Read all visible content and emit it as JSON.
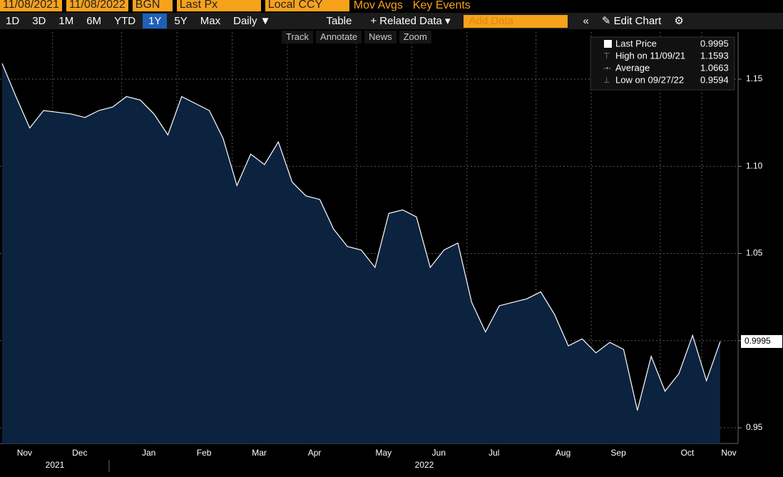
{
  "toolbar": {
    "start_date": "11/08/2021",
    "end_date": "11/08/2022",
    "source": "BGN",
    "field": "Last Px",
    "currency": "Local CCY",
    "mov_avgs": "Mov Avgs",
    "key_events": "Key Events"
  },
  "periods": [
    "1D",
    "3D",
    "1M",
    "6M",
    "YTD",
    "1Y",
    "5Y",
    "Max"
  ],
  "controls": {
    "frequency": "Daily ▼",
    "table": "Table",
    "related": "+ Related Data ▾",
    "add_data": "Add Data",
    "edit": "Edit Chart"
  },
  "tools": [
    "Track",
    "Annotate",
    "News",
    "Zoom"
  ],
  "chart_data": {
    "type": "area",
    "categories": [
      null,
      "Nov",
      null,
      null,
      null,
      "Dec",
      null,
      null,
      null,
      null,
      "Jan",
      null,
      null,
      null,
      "Feb",
      null,
      null,
      null,
      "Mar",
      null,
      null,
      null,
      "Apr",
      null,
      null,
      null,
      null,
      "May",
      null,
      null,
      null,
      "Jun",
      null,
      null,
      null,
      "Jul",
      null,
      null,
      null,
      null,
      "Aug",
      null,
      null,
      null,
      "Sep",
      null,
      null,
      null,
      null,
      "Oct",
      null,
      null,
      "Nov"
    ],
    "year_labels": [
      "2021",
      "2022"
    ],
    "series": [
      {
        "name": "Last Price",
        "color": "#ffffff",
        "fill": "#0c2340",
        "values": [
          1.159,
          1.14,
          1.122,
          1.132,
          1.131,
          1.13,
          1.128,
          1.132,
          1.134,
          1.14,
          1.138,
          1.13,
          1.118,
          1.14,
          1.136,
          1.132,
          1.116,
          1.089,
          1.107,
          1.101,
          1.114,
          1.091,
          1.083,
          1.081,
          1.064,
          1.054,
          1.052,
          1.042,
          1.073,
          1.075,
          1.071,
          1.042,
          1.052,
          1.056,
          1.022,
          1.005,
          1.02,
          1.022,
          1.024,
          1.028,
          1.015,
          0.997,
          1.001,
          0.993,
          0.999,
          0.995,
          0.96,
          0.991,
          0.971,
          0.981,
          1.003,
          0.977,
          0.9995
        ]
      }
    ],
    "stats": [
      {
        "label": "High on 11/09/21",
        "value": 1.1593
      },
      {
        "label": "Average",
        "value": 1.0663
      },
      {
        "label": "Low on 09/27/22",
        "value": 0.9594
      }
    ],
    "ylim": [
      0.941,
      1.177
    ],
    "yticks": [
      0.95,
      {
        "value": 1.0,
        "label": "1.00"
      },
      1.05,
      {
        "value": 1.1,
        "label": "1.10"
      },
      1.15
    ],
    "grid": true
  }
}
